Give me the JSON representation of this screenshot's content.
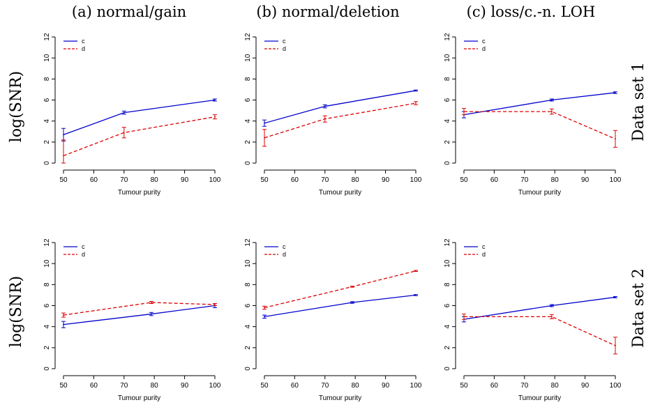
{
  "layout_labels": {
    "columns": [
      "(a) normal/gain",
      "(b) normal/deletion",
      "(c) loss/c.-n. LOH"
    ],
    "rows": [
      "Data set 1",
      "Data set 2"
    ],
    "ylabel": "log(SNR)"
  },
  "colors": {
    "c": "#0000cc",
    "d": "#dd0000"
  },
  "chart_data": [
    {
      "type": "line",
      "row": 0,
      "col": 0,
      "xlabel": "Tumour purity",
      "ylabel": "log(SNR)",
      "xlim": [
        50,
        100
      ],
      "ylim": [
        0,
        12
      ],
      "xticks": [
        50,
        60,
        70,
        80,
        90,
        100
      ],
      "yticks": [
        0,
        2,
        4,
        6,
        8,
        10,
        12
      ],
      "legend_position": "top-left",
      "series": [
        {
          "name": "c",
          "style": "solid",
          "x": [
            50,
            70,
            100
          ],
          "y": [
            2.7,
            4.8,
            6.0
          ],
          "err": [
            0.6,
            0.15,
            0.1
          ]
        },
        {
          "name": "d",
          "style": "dashed",
          "x": [
            50,
            70,
            100
          ],
          "y": [
            0.7,
            2.9,
            4.4
          ],
          "err": [
            1.5,
            0.5,
            0.2
          ]
        }
      ]
    },
    {
      "type": "line",
      "row": 0,
      "col": 1,
      "xlabel": "Tumour purity",
      "ylabel": "log(SNR)",
      "xlim": [
        50,
        100
      ],
      "ylim": [
        0,
        12
      ],
      "xticks": [
        50,
        60,
        70,
        80,
        90,
        100
      ],
      "yticks": [
        0,
        2,
        4,
        6,
        8,
        10,
        12
      ],
      "legend_position": "top-left",
      "series": [
        {
          "name": "c",
          "style": "solid",
          "x": [
            50,
            70,
            100
          ],
          "y": [
            3.8,
            5.4,
            6.9
          ],
          "err": [
            0.3,
            0.15,
            0.05
          ]
        },
        {
          "name": "d",
          "style": "dashed",
          "x": [
            50,
            70,
            100
          ],
          "y": [
            2.4,
            4.2,
            5.7
          ],
          "err": [
            0.8,
            0.3,
            0.15
          ]
        }
      ]
    },
    {
      "type": "line",
      "row": 0,
      "col": 2,
      "xlabel": "Tumour purity",
      "ylabel": "log(SNR)",
      "xlim": [
        50,
        100
      ],
      "ylim": [
        0,
        12
      ],
      "xticks": [
        50,
        60,
        70,
        80,
        90,
        100
      ],
      "yticks": [
        0,
        2,
        4,
        6,
        8,
        10,
        12
      ],
      "legend_position": "top-left",
      "series": [
        {
          "name": "c",
          "style": "solid",
          "x": [
            50,
            79,
            100
          ],
          "y": [
            4.6,
            6.0,
            6.7
          ],
          "err": [
            0.3,
            0.1,
            0.08
          ]
        },
        {
          "name": "d",
          "style": "dashed",
          "x": [
            50,
            79,
            100
          ],
          "y": [
            4.9,
            4.9,
            2.3
          ],
          "err": [
            0.3,
            0.25,
            0.8
          ]
        }
      ]
    },
    {
      "type": "line",
      "row": 1,
      "col": 0,
      "xlabel": "Tumour purity",
      "ylabel": "log(SNR)",
      "xlim": [
        50,
        100
      ],
      "ylim": [
        0,
        12
      ],
      "xticks": [
        50,
        60,
        70,
        80,
        90,
        100
      ],
      "yticks": [
        0,
        2,
        4,
        6,
        8,
        10,
        12
      ],
      "legend_position": "top-left",
      "series": [
        {
          "name": "c",
          "style": "solid",
          "x": [
            50,
            79,
            100
          ],
          "y": [
            4.2,
            5.2,
            6.0
          ],
          "err": [
            0.3,
            0.15,
            0.2
          ]
        },
        {
          "name": "d",
          "style": "dashed",
          "x": [
            50,
            79,
            100
          ],
          "y": [
            5.1,
            6.3,
            6.1
          ],
          "err": [
            0.2,
            0.1,
            0.1
          ]
        }
      ]
    },
    {
      "type": "line",
      "row": 1,
      "col": 1,
      "xlabel": "Tumour purity",
      "ylabel": "log(SNR)",
      "xlim": [
        50,
        100
      ],
      "ylim": [
        0,
        12
      ],
      "xticks": [
        50,
        60,
        70,
        80,
        90,
        100
      ],
      "yticks": [
        0,
        2,
        4,
        6,
        8,
        10,
        12
      ],
      "legend_position": "top-left",
      "series": [
        {
          "name": "c",
          "style": "solid",
          "x": [
            50,
            79,
            100
          ],
          "y": [
            4.95,
            6.3,
            7.0
          ],
          "err": [
            0.15,
            0.08,
            0.05
          ]
        },
        {
          "name": "d",
          "style": "dashed",
          "x": [
            50,
            79,
            100
          ],
          "y": [
            5.8,
            7.8,
            9.3
          ],
          "err": [
            0.15,
            0.05,
            0.05
          ]
        }
      ]
    },
    {
      "type": "line",
      "row": 1,
      "col": 2,
      "xlabel": "Tumour purity",
      "ylabel": "log(SNR)",
      "xlim": [
        50,
        100
      ],
      "ylim": [
        0,
        12
      ],
      "xticks": [
        50,
        60,
        70,
        80,
        90,
        100
      ],
      "yticks": [
        0,
        2,
        4,
        6,
        8,
        10,
        12
      ],
      "legend_position": "top-left",
      "series": [
        {
          "name": "c",
          "style": "solid",
          "x": [
            50,
            79,
            100
          ],
          "y": [
            4.7,
            6.0,
            6.8
          ],
          "err": [
            0.25,
            0.1,
            0.06
          ]
        },
        {
          "name": "d",
          "style": "dashed",
          "x": [
            50,
            79,
            100
          ],
          "y": [
            4.95,
            4.95,
            2.2
          ],
          "err": [
            0.25,
            0.2,
            0.8
          ]
        }
      ]
    }
  ]
}
